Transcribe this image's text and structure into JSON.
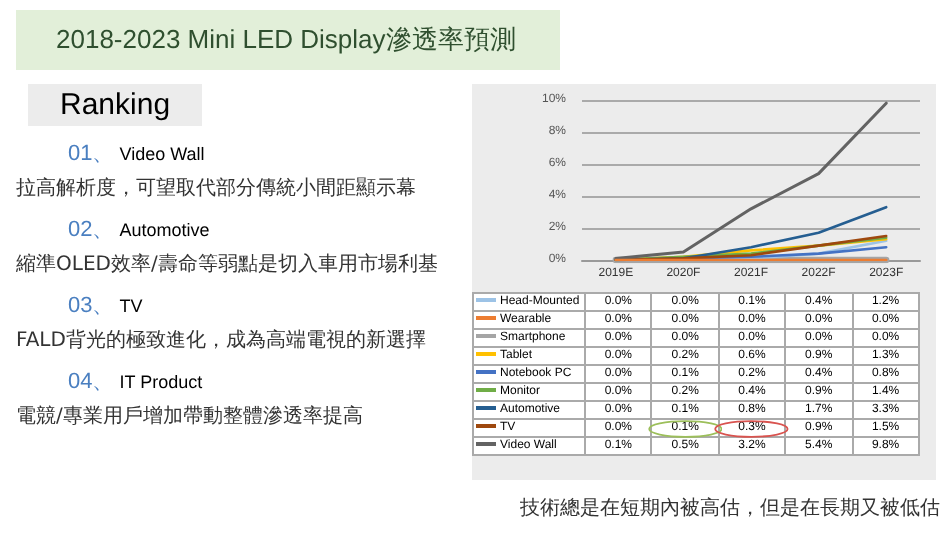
{
  "chart_data": {
    "type": "line",
    "title": "2018-2023 Mini LED Display滲透率預測",
    "annotations": [
      "Ranking",
      "01、Video Wall",
      "拉高解析度，可望取代部分傳統小間距顯示幕",
      "02、Automotive",
      "縮準OLED效率/壽命等弱點是切入車用市場利基",
      "03、TV",
      "FALD背光的極致進化，成為高端電視的新選擇",
      "04、IT Product",
      "電競/專業用戶增加帶動整體滲透率提高",
      "技術總是在短期內被高估，但是在長期又被低估"
    ],
    "categories": [
      "2019E",
      "2020F",
      "2021F",
      "2022F",
      "2023F"
    ],
    "ylim": [
      0,
      10
    ],
    "yticks": [
      {
        "value": 0,
        "label": "0%"
      },
      {
        "value": 2,
        "label": "2%"
      },
      {
        "value": 4,
        "label": "4%"
      },
      {
        "value": 6,
        "label": "6%"
      },
      {
        "value": 8,
        "label": "8%"
      },
      {
        "value": 10,
        "label": "10%"
      }
    ],
    "grid": "y",
    "legend": "bottom",
    "marker": "none",
    "line_style": "solid",
    "series": [
      {
        "name": "Head-Mounted",
        "color": "#9dc3e6",
        "values": [
          0.0,
          0.0,
          0.1,
          0.4,
          1.2
        ],
        "value_labels": [
          "0.0%",
          "0.0%",
          "0.1%",
          "0.4%",
          "1.2%"
        ]
      },
      {
        "name": "Wearable",
        "color": "#ed7d31",
        "values": [
          0.0,
          0.0,
          0.0,
          0.0,
          0.0
        ],
        "value_labels": [
          "0.0%",
          "0.0%",
          "0.0%",
          "0.0%",
          "0.0%"
        ]
      },
      {
        "name": "Smartphone",
        "color": "#a5a5a5",
        "values": [
          0.0,
          0.0,
          0.0,
          0.0,
          0.0
        ],
        "value_labels": [
          "0.0%",
          "0.0%",
          "0.0%",
          "0.0%",
          "0.0%"
        ]
      },
      {
        "name": "Tablet",
        "color": "#ffc000",
        "values": [
          0.0,
          0.2,
          0.6,
          0.9,
          1.3
        ],
        "value_labels": [
          "0.0%",
          "0.2%",
          "0.6%",
          "0.9%",
          "1.3%"
        ]
      },
      {
        "name": "Notebook PC",
        "color": "#4472c4",
        "values": [
          0.0,
          0.1,
          0.2,
          0.4,
          0.8
        ],
        "value_labels": [
          "0.0%",
          "0.1%",
          "0.2%",
          "0.4%",
          "0.8%"
        ]
      },
      {
        "name": "Monitor",
        "color": "#70ad47",
        "values": [
          0.0,
          0.2,
          0.4,
          0.9,
          1.4
        ],
        "value_labels": [
          "0.0%",
          "0.2%",
          "0.4%",
          "0.9%",
          "1.4%"
        ]
      },
      {
        "name": "Automotive",
        "color": "#255e91",
        "values": [
          0.0,
          0.1,
          0.8,
          1.7,
          3.3
        ],
        "value_labels": [
          "0.0%",
          "0.1%",
          "0.8%",
          "1.7%",
          "3.3%"
        ]
      },
      {
        "name": "TV",
        "color": "#9e480e",
        "values": [
          0.0,
          0.1,
          0.3,
          0.9,
          1.5
        ],
        "value_labels": [
          "0.0%",
          "0.1%",
          "0.3%",
          "0.9%",
          "1.5%"
        ]
      },
      {
        "name": "Video Wall",
        "color": "#636363",
        "values": [
          0.1,
          0.5,
          3.2,
          5.4,
          9.8
        ],
        "value_labels": [
          "0.1%",
          "0.5%",
          "3.2%",
          "5.4%",
          "9.8%"
        ]
      }
    ]
  }
}
